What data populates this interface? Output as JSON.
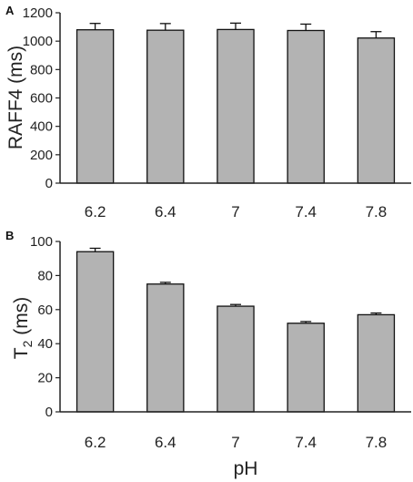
{
  "chart_data": [
    {
      "panel_label": "A",
      "type": "bar",
      "categories": [
        "6.2",
        "6.4",
        "7",
        "7.4",
        "7.8"
      ],
      "values": [
        1080,
        1077,
        1082,
        1075,
        1022
      ],
      "errors": [
        45,
        47,
        45,
        45,
        45
      ],
      "ylabel": "RAFF4 (ms)",
      "ylim": [
        0,
        1200
      ],
      "yticks": [
        0,
        200,
        400,
        600,
        800,
        1000,
        1200
      ],
      "bar_color": "#b3b3b3",
      "grid": false
    },
    {
      "panel_label": "B",
      "type": "bar",
      "categories": [
        "6.2",
        "6.4",
        "7",
        "7.4",
        "7.8"
      ],
      "values": [
        94,
        75,
        62,
        52,
        57
      ],
      "errors": [
        2,
        1,
        1,
        1,
        1
      ],
      "ylabel_main": "T",
      "ylabel_sub": "2",
      "ylabel_unit": " (ms)",
      "xlabel": "pH",
      "ylim": [
        0,
        100
      ],
      "yticks": [
        0,
        20,
        40,
        60,
        80,
        100
      ],
      "bar_color": "#b3b3b3",
      "grid": false
    }
  ]
}
